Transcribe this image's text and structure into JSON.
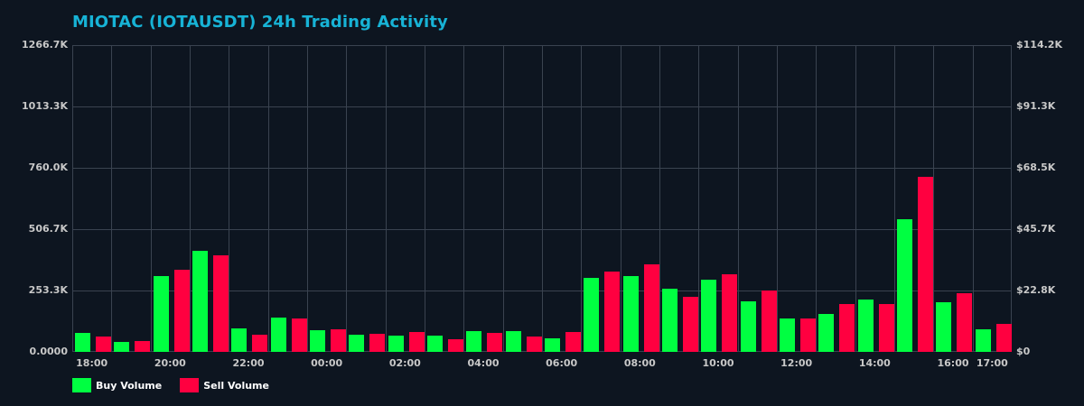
{
  "chart_data": {
    "type": "bar",
    "title": "MIOTAC (IOTAUSDT) 24h Trading Activity",
    "xlabel": "",
    "ylabel": "",
    "categories": [
      "18:00",
      "19:00",
      "20:00",
      "21:00",
      "22:00",
      "23:00",
      "00:00",
      "01:00",
      "02:00",
      "03:00",
      "04:00",
      "05:00",
      "06:00",
      "07:00",
      "08:00",
      "09:00",
      "10:00",
      "11:00",
      "12:00",
      "13:00",
      "14:00",
      "15:00",
      "16:00",
      "17:00"
    ],
    "series": [
      {
        "name": "Buy Volume",
        "color": "#00ff41",
        "values": [
          78000,
          41000,
          313000,
          417000,
          97000,
          140000,
          89000,
          71000,
          67000,
          67000,
          86000,
          86000,
          56000,
          306000,
          313000,
          261000,
          298000,
          209000,
          138000,
          156000,
          216000,
          548000,
          205000,
          93000
        ]
      },
      {
        "name": "Sell Volume",
        "color": "#ff0040",
        "values": [
          63000,
          45000,
          339000,
          399000,
          71000,
          138000,
          93000,
          75000,
          82000,
          52000,
          78000,
          63000,
          82000,
          332000,
          361000,
          227000,
          320000,
          253000,
          138000,
          197000,
          197000,
          723000,
          242000,
          116000
        ]
      }
    ],
    "ylim": [
      0,
      1266700
    ],
    "y_ticks_left": [
      "0.0000",
      "253.3K",
      "506.7K",
      "760.0K",
      "1013.3K",
      "1266.7K"
    ],
    "y_ticks_right": [
      "$0",
      "$22.8K",
      "$45.7K",
      "$68.5K",
      "$91.3K",
      "$114.2K"
    ],
    "x_tick_labels": [
      {
        "label": "18:00",
        "index": 0
      },
      {
        "label": "20:00",
        "index": 2
      },
      {
        "label": "22:00",
        "index": 4
      },
      {
        "label": "00:00",
        "index": 6
      },
      {
        "label": "02:00",
        "index": 8
      },
      {
        "label": "04:00",
        "index": 10
      },
      {
        "label": "06:00",
        "index": 12
      },
      {
        "label": "08:00",
        "index": 14
      },
      {
        "label": "10:00",
        "index": 16
      },
      {
        "label": "12:00",
        "index": 18
      },
      {
        "label": "14:00",
        "index": 20
      },
      {
        "label": "16:00",
        "index": 22
      },
      {
        "label": "17:00",
        "index": 23
      }
    ],
    "grid": true,
    "legend_position": "bottom-left"
  },
  "title": "MIOTAC (IOTAUSDT) 24h Trading Activity",
  "legend": {
    "buy_label": "Buy Volume",
    "sell_label": "Sell Volume",
    "buy_color": "#00ff41",
    "sell_color": "#ff0040"
  }
}
